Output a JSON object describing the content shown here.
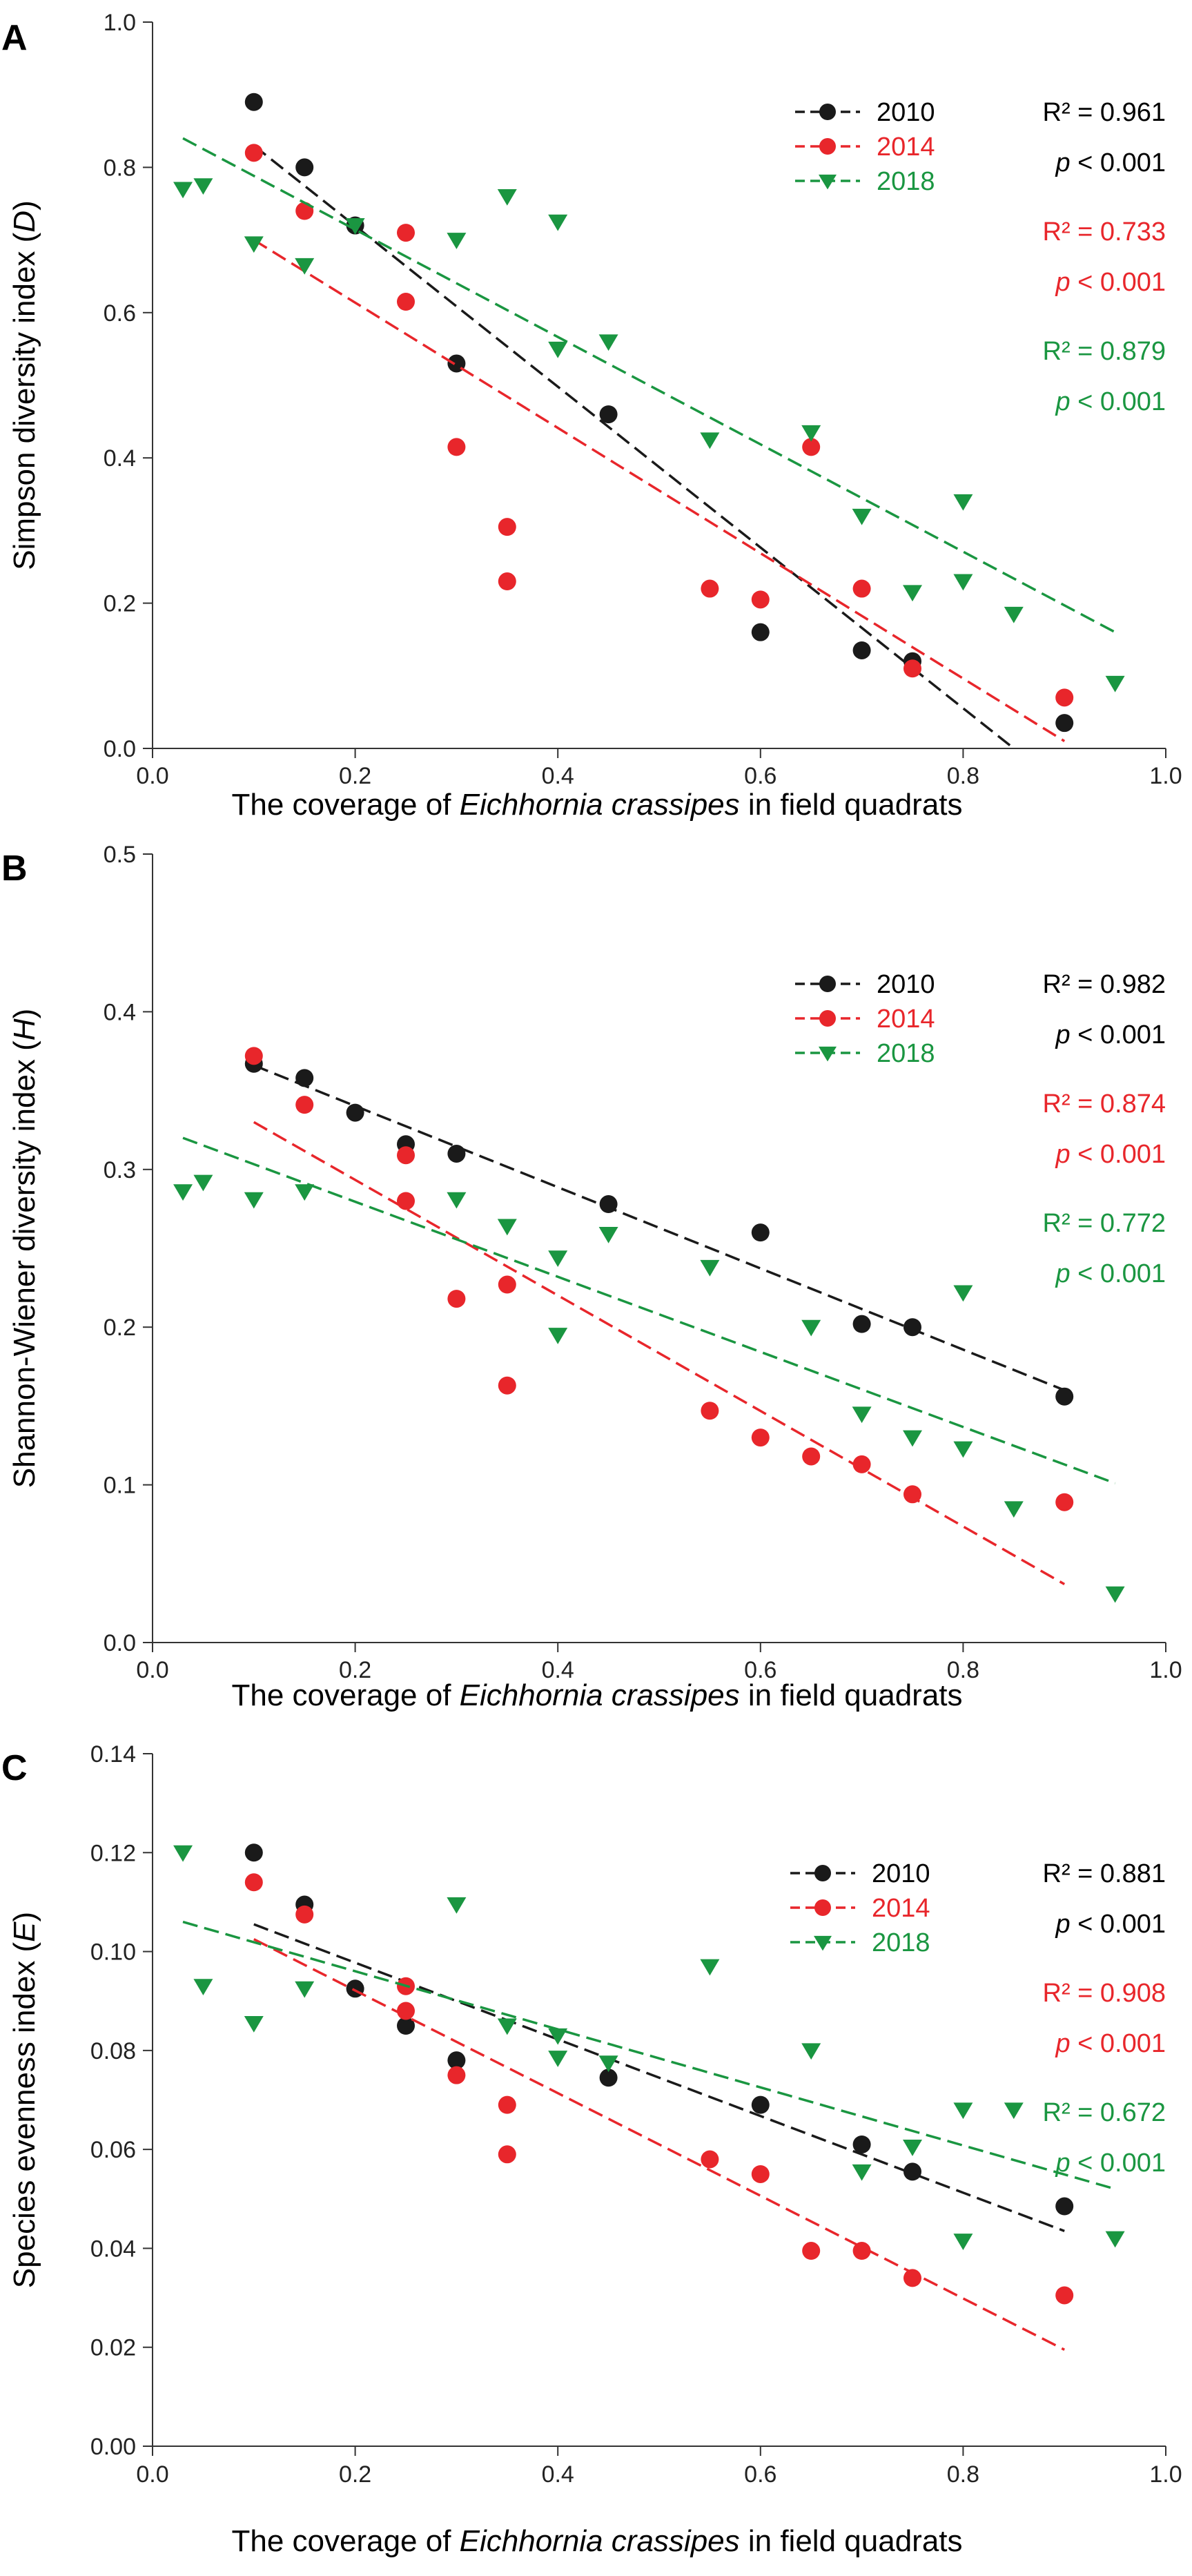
{
  "colors": {
    "2010": "#1a1a1a",
    "2014": "#e8262b",
    "2018": "#1a9641"
  },
  "chart_data": [
    {
      "panel_letter": "A",
      "type": "scatter",
      "xlabel": {
        "pre": "The coverage of ",
        "italic": "Eichhornia crassipes",
        "post": " in field quadrats"
      },
      "ylabel": {
        "pre": "Simpson diversity index (",
        "italic": "D",
        "post": ")"
      },
      "xlim": [
        0,
        1.0
      ],
      "ylim": [
        0,
        1.0
      ],
      "xticks": [
        0.0,
        0.2,
        0.4,
        0.6,
        0.8,
        1.0
      ],
      "xtick_labels": [
        "0.0",
        "0.2",
        "0.4",
        "0.6",
        "0.8",
        "1.0"
      ],
      "yticks": [
        0.0,
        0.2,
        0.4,
        0.6,
        0.8,
        1.0
      ],
      "ytick_labels": [
        "0.0",
        "0.2",
        "0.4",
        "0.6",
        "0.8",
        "1.0"
      ],
      "series": [
        {
          "name": "2010",
          "marker": "circle",
          "x": [
            0.1,
            0.15,
            0.2,
            0.3,
            0.45,
            0.6,
            0.7,
            0.75,
            0.9
          ],
          "y": [
            0.89,
            0.8,
            0.72,
            0.53,
            0.46,
            0.16,
            0.135,
            0.12,
            0.035
          ],
          "fit": [
            [
              0.1,
              0.83
            ],
            [
              0.85,
              0.0
            ]
          ],
          "r2": "R² = 0.961",
          "p_label": "p",
          "p_value": " < 0.001"
        },
        {
          "name": "2014",
          "marker": "circle",
          "x": [
            0.1,
            0.15,
            0.25,
            0.25,
            0.3,
            0.35,
            0.35,
            0.55,
            0.6,
            0.65,
            0.7,
            0.75,
            0.9
          ],
          "y": [
            0.82,
            0.74,
            0.71,
            0.615,
            0.415,
            0.305,
            0.23,
            0.22,
            0.205,
            0.415,
            0.22,
            0.11,
            0.07
          ],
          "fit": [
            [
              0.1,
              0.7
            ],
            [
              0.9,
              0.01
            ]
          ],
          "r2": "R² = 0.733",
          "p_label": "p",
          "p_value": " < 0.001"
        },
        {
          "name": "2018",
          "marker": "triangle",
          "x": [
            0.03,
            0.05,
            0.1,
            0.15,
            0.2,
            0.3,
            0.35,
            0.4,
            0.4,
            0.45,
            0.55,
            0.65,
            0.7,
            0.75,
            0.8,
            0.8,
            0.85,
            0.95
          ],
          "y": [
            0.77,
            0.775,
            0.695,
            0.665,
            0.72,
            0.7,
            0.76,
            0.725,
            0.55,
            0.56,
            0.425,
            0.435,
            0.32,
            0.215,
            0.34,
            0.23,
            0.185,
            0.09
          ],
          "fit": [
            [
              0.03,
              0.84
            ],
            [
              0.95,
              0.16
            ]
          ],
          "r2": "R² = 0.879",
          "p_label": "p",
          "p_value": " < 0.001"
        }
      ]
    },
    {
      "panel_letter": "B",
      "type": "scatter",
      "xlabel": {
        "pre": "The coverage of ",
        "italic": "Eichhornia crassipes",
        "post": " in field quadrats"
      },
      "ylabel": {
        "pre": "Shannon-Wiener diversity index (",
        "italic": "H",
        "post": ")"
      },
      "xlim": [
        0,
        1.0
      ],
      "ylim": [
        0,
        0.5
      ],
      "xticks": [
        0.0,
        0.2,
        0.4,
        0.6,
        0.8,
        1.0
      ],
      "xtick_labels": [
        "0.0",
        "0.2",
        "0.4",
        "0.6",
        "0.8",
        "1.0"
      ],
      "yticks": [
        0.0,
        0.1,
        0.2,
        0.3,
        0.4,
        0.5
      ],
      "ytick_labels": [
        "0.0",
        "0.1",
        "0.2",
        "0.3",
        "0.4",
        "0.5"
      ],
      "series": [
        {
          "name": "2010",
          "marker": "circle",
          "x": [
            0.1,
            0.15,
            0.2,
            0.25,
            0.3,
            0.45,
            0.6,
            0.7,
            0.75,
            0.9
          ],
          "y": [
            0.367,
            0.358,
            0.336,
            0.316,
            0.31,
            0.278,
            0.26,
            0.202,
            0.2,
            0.156
          ],
          "fit": [
            [
              0.1,
              0.366
            ],
            [
              0.9,
              0.16
            ]
          ],
          "r2": "R² = 0.982",
          "p_label": "p",
          "p_value": " < 0.001"
        },
        {
          "name": "2014",
          "marker": "circle",
          "x": [
            0.1,
            0.15,
            0.25,
            0.25,
            0.3,
            0.35,
            0.35,
            0.55,
            0.6,
            0.65,
            0.7,
            0.75,
            0.9
          ],
          "y": [
            0.372,
            0.341,
            0.309,
            0.28,
            0.218,
            0.227,
            0.163,
            0.147,
            0.13,
            0.118,
            0.113,
            0.094,
            0.089
          ],
          "fit": [
            [
              0.1,
              0.33
            ],
            [
              0.9,
              0.037
            ]
          ],
          "r2": "R² = 0.874",
          "p_label": "p",
          "p_value": " < 0.001"
        },
        {
          "name": "2018",
          "marker": "triangle",
          "x": [
            0.03,
            0.05,
            0.1,
            0.15,
            0.3,
            0.35,
            0.4,
            0.4,
            0.45,
            0.55,
            0.65,
            0.7,
            0.75,
            0.8,
            0.8,
            0.85,
            0.95
          ],
          "y": [
            0.286,
            0.292,
            0.281,
            0.286,
            0.281,
            0.264,
            0.244,
            0.195,
            0.259,
            0.238,
            0.2,
            0.145,
            0.13,
            0.222,
            0.123,
            0.085,
            0.031
          ],
          "fit": [
            [
              0.03,
              0.32
            ],
            [
              0.95,
              0.101
            ]
          ],
          "r2": "R² = 0.772",
          "p_label": "p",
          "p_value": " < 0.001"
        }
      ]
    },
    {
      "panel_letter": "C",
      "type": "scatter",
      "xlabel": {
        "pre": "The coverage of ",
        "italic": "Eichhornia crassipes",
        "post": " in field quadrats"
      },
      "ylabel": {
        "pre": "Species evenness index (",
        "italic": "E",
        "post": ")"
      },
      "xlim": [
        0,
        1.0
      ],
      "ylim": [
        0,
        0.14
      ],
      "xticks": [
        0.0,
        0.2,
        0.4,
        0.6,
        0.8,
        1.0
      ],
      "xtick_labels": [
        "0.0",
        "0.2",
        "0.4",
        "0.6",
        "0.8",
        "1.0"
      ],
      "yticks": [
        0.0,
        0.02,
        0.04,
        0.06,
        0.08,
        0.1,
        0.12,
        0.14
      ],
      "ytick_labels": [
        "0.00",
        "0.02",
        "0.04",
        "0.06",
        "0.08",
        "0.10",
        "0.12",
        "0.14"
      ],
      "series": [
        {
          "name": "2010",
          "marker": "circle",
          "x": [
            0.1,
            0.15,
            0.2,
            0.25,
            0.3,
            0.45,
            0.6,
            0.7,
            0.75,
            0.9
          ],
          "y": [
            0.12,
            0.1095,
            0.0925,
            0.085,
            0.078,
            0.0745,
            0.069,
            0.061,
            0.0555,
            0.0485
          ],
          "fit": [
            [
              0.1,
              0.1055
            ],
            [
              0.9,
              0.0435
            ]
          ],
          "r2": "R² = 0.881",
          "p_label": "p",
          "p_value": " < 0.001"
        },
        {
          "name": "2014",
          "marker": "circle",
          "x": [
            0.1,
            0.15,
            0.25,
            0.25,
            0.3,
            0.35,
            0.35,
            0.55,
            0.6,
            0.65,
            0.7,
            0.75,
            0.9
          ],
          "y": [
            0.114,
            0.1075,
            0.093,
            0.088,
            0.075,
            0.069,
            0.059,
            0.058,
            0.055,
            0.0395,
            0.0395,
            0.034,
            0.0305
          ],
          "fit": [
            [
              0.1,
              0.1025
            ],
            [
              0.9,
              0.0195
            ]
          ],
          "r2": "R² = 0.908",
          "p_label": "p",
          "p_value": " < 0.001"
        },
        {
          "name": "2018",
          "marker": "triangle",
          "x": [
            0.03,
            0.05,
            0.1,
            0.15,
            0.3,
            0.35,
            0.4,
            0.4,
            0.45,
            0.55,
            0.65,
            0.7,
            0.75,
            0.8,
            0.8,
            0.85,
            0.95
          ],
          "y": [
            0.12,
            0.093,
            0.0855,
            0.0925,
            0.1095,
            0.085,
            0.083,
            0.0785,
            0.0775,
            0.097,
            0.08,
            0.0555,
            0.0605,
            0.068,
            0.0415,
            0.068,
            0.042
          ],
          "fit": [
            [
              0.03,
              0.106
            ],
            [
              0.95,
              0.052
            ]
          ],
          "r2": "R² = 0.672",
          "p_label": "p",
          "p_value": " < 0.001"
        }
      ]
    }
  ]
}
